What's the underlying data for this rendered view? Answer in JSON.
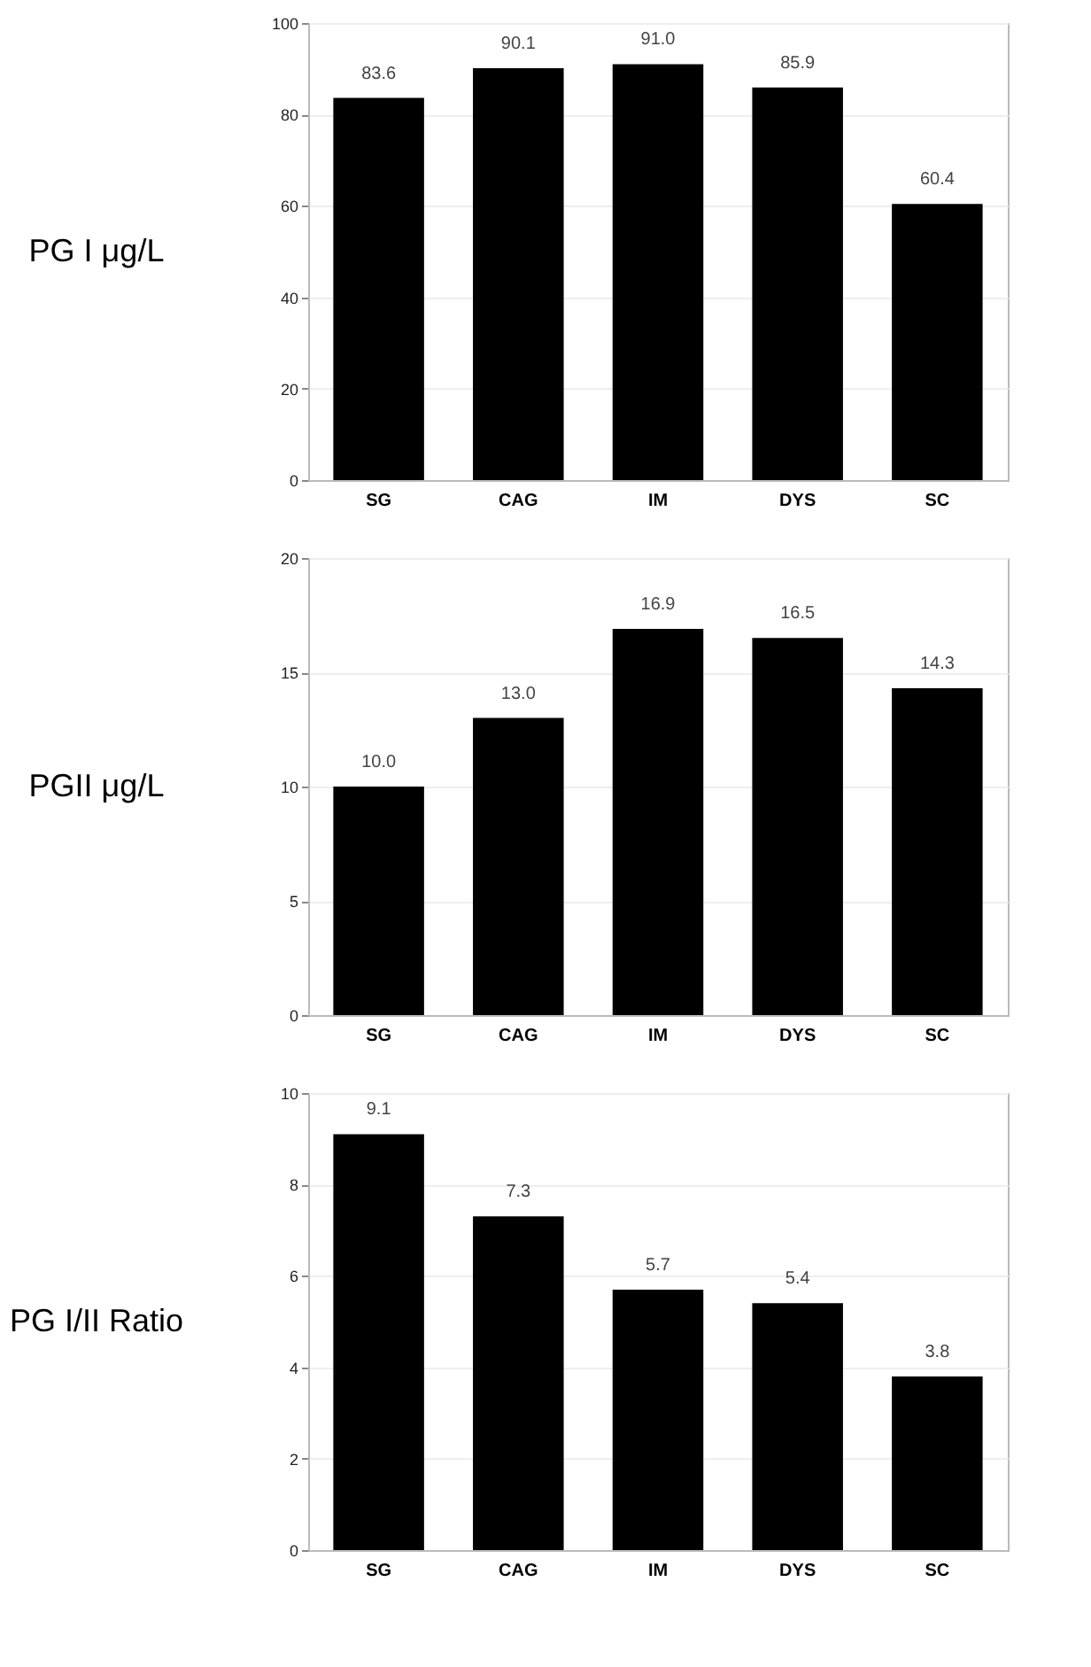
{
  "chart_data": [
    {
      "type": "bar",
      "ylabel": "PG I μg/L",
      "categories": [
        "SG",
        "CAG",
        "IM",
        "DYS",
        "SC"
      ],
      "values": [
        83.6,
        90.1,
        91.0,
        85.9,
        60.4
      ],
      "value_labels": [
        "83.6",
        "90.1",
        "91.0",
        "85.9",
        "60.4"
      ],
      "color": "#000000",
      "ylim": [
        0,
        100
      ],
      "yticks": [
        0,
        20,
        40,
        60,
        80,
        100
      ],
      "grid": "y"
    },
    {
      "type": "bar",
      "ylabel": "PGII μg/L",
      "categories": [
        "SG",
        "CAG",
        "IM",
        "DYS",
        "SC"
      ],
      "values": [
        10.0,
        13.0,
        16.9,
        16.5,
        14.3
      ],
      "value_labels": [
        "10.0",
        "13.0",
        "16.9",
        "16.5",
        "14.3"
      ],
      "color": "#000000",
      "ylim": [
        0,
        20
      ],
      "yticks": [
        0,
        5,
        10,
        15,
        20
      ],
      "grid": "y"
    },
    {
      "type": "bar",
      "ylabel": "PG I/II Ratio",
      "categories": [
        "SG",
        "CAG",
        "IM",
        "DYS",
        "SC"
      ],
      "values": [
        9.1,
        7.3,
        5.7,
        5.4,
        3.8
      ],
      "value_labels": [
        "9.1",
        "7.3",
        "5.7",
        "5.4",
        "3.8"
      ],
      "color": "#000000",
      "ylim": [
        0,
        10
      ],
      "yticks": [
        0,
        2,
        4,
        6,
        8,
        10
      ],
      "grid": "y"
    }
  ]
}
